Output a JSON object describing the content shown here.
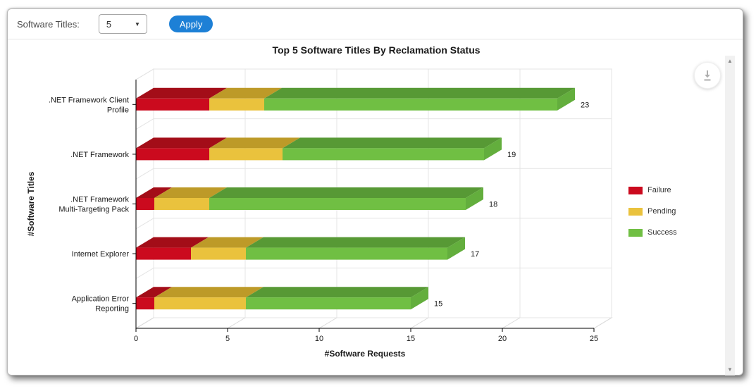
{
  "toolbar": {
    "label": "Software Titles:",
    "select_value": "5",
    "apply_label": "Apply"
  },
  "chart_data": {
    "type": "bar",
    "orientation": "horizontal",
    "stacked": true,
    "style": "3d",
    "title": "Top 5 Software Titles By Reclamation Status",
    "xlabel": "#Software Requests",
    "ylabel": "#Software Titles",
    "xlim": [
      0,
      25
    ],
    "xticks": [
      0,
      5,
      10,
      15,
      20,
      25
    ],
    "grid": true,
    "legend_position": "right",
    "categories": [
      ".NET Framework Client Profile",
      ".NET Framework",
      ".NET Framework Multi-Targeting Pack",
      "Internet Explorer",
      "Application Error Reporting"
    ],
    "category_label_lines": [
      [
        ".NET Framework Client",
        "Profile"
      ],
      [
        ".NET Framework"
      ],
      [
        ".NET Framework",
        "Multi-Targeting Pack"
      ],
      [
        "Internet Explorer"
      ],
      [
        "Application Error",
        "Reporting"
      ]
    ],
    "series": [
      {
        "name": "Failure",
        "color": "#cb0a1e",
        "color_top": "#a30d18",
        "values": [
          4,
          4,
          1,
          3,
          1
        ]
      },
      {
        "name": "Pending",
        "color": "#eac23d",
        "color_top": "#bd9a28",
        "values": [
          3,
          4,
          3,
          3,
          5
        ]
      },
      {
        "name": "Success",
        "color": "#70bf43",
        "color_top": "#579935",
        "color_side": "#63ae3d",
        "values": [
          16,
          11,
          14,
          11,
          9
        ]
      }
    ],
    "totals": [
      23,
      19,
      18,
      17,
      15
    ]
  },
  "legend": {
    "items": [
      {
        "label": "Failure",
        "color": "#cb0a1e"
      },
      {
        "label": "Pending",
        "color": "#eac23d"
      },
      {
        "label": "Success",
        "color": "#70bf43"
      }
    ]
  }
}
